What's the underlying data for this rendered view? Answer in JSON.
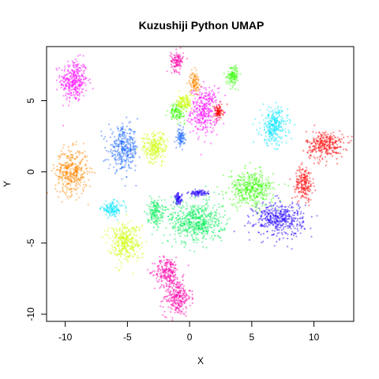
{
  "chart_data": {
    "type": "scatter",
    "title": "Kuzushiji Python UMAP",
    "xlabel": "X",
    "ylabel": "Y",
    "xlim": [
      -11.5,
      13.2
    ],
    "ylim": [
      -10.5,
      8.8
    ],
    "xticks": [
      -10,
      -5,
      0,
      5,
      10
    ],
    "yticks": [
      -10,
      -5,
      0,
      5
    ],
    "x_tick_labels": [
      "-10",
      "-5",
      "0",
      "5",
      "10"
    ],
    "y_tick_labels": [
      "-10",
      "-5",
      "0",
      "5"
    ],
    "grid": false,
    "legend": "none",
    "series": [
      {
        "color": "#ff00ff",
        "clusters": [
          {
            "cx": -9.3,
            "cy": 6.4,
            "sx": 0.55,
            "sy": 0.75
          },
          {
            "cx": 1.2,
            "cy": 4.3,
            "sx": 0.55,
            "sy": 0.8
          }
        ]
      },
      {
        "color": "#ff00aa",
        "clusters": [
          {
            "cx": -1.0,
            "cy": -8.8,
            "sx": 0.55,
            "sy": 0.65
          },
          {
            "cx": -1.8,
            "cy": -7.0,
            "sx": 0.5,
            "sy": 0.5
          },
          {
            "cx": -1.0,
            "cy": 7.8,
            "sx": 0.25,
            "sy": 0.35
          }
        ]
      },
      {
        "color": "#ff8800",
        "clusters": [
          {
            "cx": -9.5,
            "cy": 0.0,
            "sx": 0.65,
            "sy": 0.8
          },
          {
            "cx": 0.4,
            "cy": 6.3,
            "sx": 0.2,
            "sy": 0.35
          }
        ]
      },
      {
        "color": "#ff0000",
        "clusters": [
          {
            "cx": 10.9,
            "cy": 1.9,
            "sx": 0.75,
            "sy": 0.5
          },
          {
            "cx": 9.2,
            "cy": -0.8,
            "sx": 0.35,
            "sy": 0.6
          },
          {
            "cx": 2.3,
            "cy": 4.2,
            "sx": 0.2,
            "sy": 0.25
          }
        ]
      },
      {
        "color": "#00e5ff",
        "clusters": [
          {
            "cx": 6.8,
            "cy": 3.2,
            "sx": 0.55,
            "sy": 0.65
          },
          {
            "cx": -6.2,
            "cy": -2.6,
            "sx": 0.45,
            "sy": 0.25
          }
        ]
      },
      {
        "color": "#1a66ff",
        "clusters": [
          {
            "cx": -5.3,
            "cy": 1.6,
            "sx": 0.6,
            "sy": 0.75
          },
          {
            "cx": -0.7,
            "cy": 2.4,
            "sx": 0.15,
            "sy": 0.3
          }
        ]
      },
      {
        "color": "#2200ff",
        "clusters": [
          {
            "cx": 7.2,
            "cy": -3.3,
            "sx": 1.0,
            "sy": 0.6
          },
          {
            "cx": -0.9,
            "cy": -1.9,
            "sx": 0.15,
            "sy": 0.2
          },
          {
            "cx": 0.7,
            "cy": -1.5,
            "sx": 0.4,
            "sy": 0.1
          }
        ]
      },
      {
        "color": "#33ff00",
        "clusters": [
          {
            "cx": 5.0,
            "cy": -1.2,
            "sx": 0.9,
            "sy": 0.6
          },
          {
            "cx": 3.5,
            "cy": 6.8,
            "sx": 0.25,
            "sy": 0.35
          },
          {
            "cx": -1.0,
            "cy": 4.2,
            "sx": 0.3,
            "sy": 0.3
          }
        ]
      },
      {
        "color": "#00ee55",
        "clusters": [
          {
            "cx": 0.5,
            "cy": -3.5,
            "sx": 1.1,
            "sy": 0.75
          },
          {
            "cx": -2.8,
            "cy": -2.8,
            "sx": 0.3,
            "sy": 0.45
          }
        ]
      },
      {
        "color": "#ccff00",
        "clusters": [
          {
            "cx": -5.2,
            "cy": -4.9,
            "sx": 0.65,
            "sy": 0.65
          },
          {
            "cx": -2.8,
            "cy": 1.7,
            "sx": 0.5,
            "sy": 0.55
          },
          {
            "cx": -0.4,
            "cy": 4.9,
            "sx": 0.3,
            "sy": 0.3
          }
        ]
      }
    ]
  }
}
